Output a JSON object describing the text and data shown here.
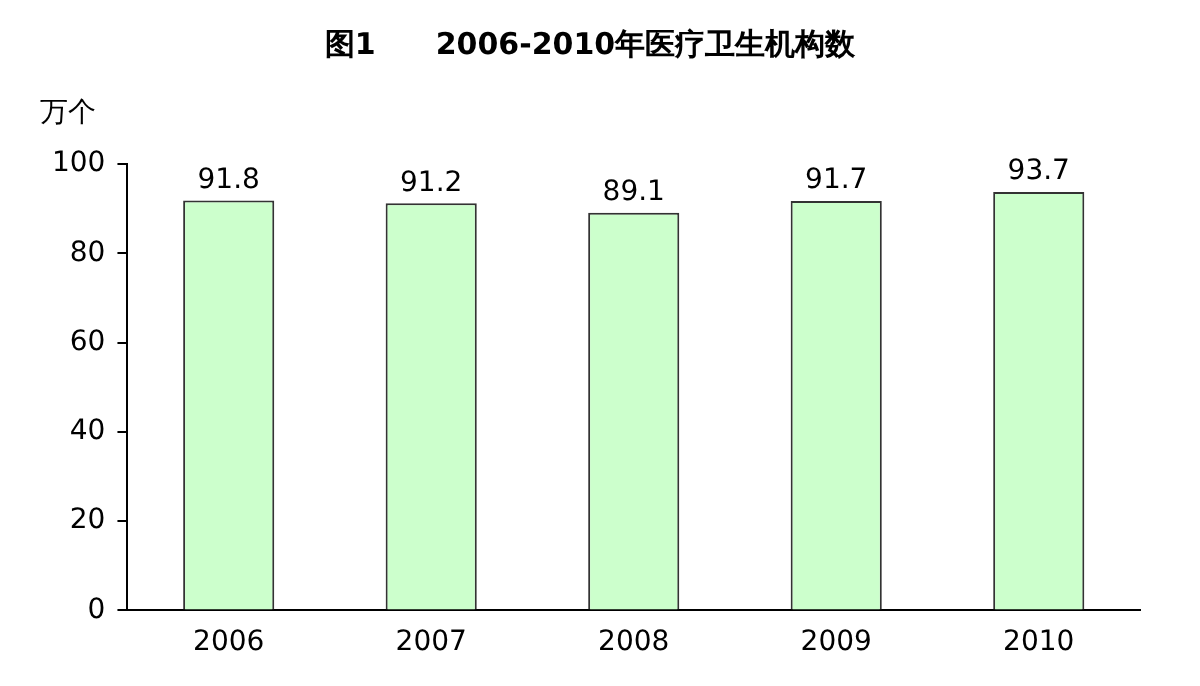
{
  "chart_data": {
    "type": "bar",
    "title": "图1　　2006-2010年医疗卫生机构数",
    "ylabel": "万个",
    "categories": [
      "2006",
      "2007",
      "2008",
      "2009",
      "2010"
    ],
    "values": [
      91.8,
      91.2,
      89.1,
      91.7,
      93.7
    ],
    "color": "#ccffcc",
    "ylim": [
      0,
      100
    ],
    "yticks": [
      0,
      20,
      40,
      60,
      80,
      100
    ],
    "grid": false,
    "legend": false,
    "data_labels": true
  }
}
